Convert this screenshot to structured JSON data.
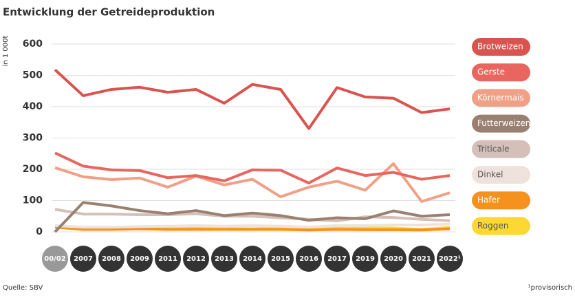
{
  "chart_data": {
    "type": "line",
    "title": "Entwicklung der Getreideproduktion",
    "y_label": "in 1 000t",
    "categories": [
      "00/02",
      "2007",
      "2008",
      "2009",
      "2011",
      "2012",
      "2013",
      "2014",
      "2015",
      "2016",
      "2017",
      "2019",
      "2020",
      "2021",
      "2022¹"
    ],
    "series": [
      {
        "name": "Brotweizen",
        "color": "#d9534f",
        "values": [
          518,
          435,
          455,
          462,
          446,
          455,
          411,
          471,
          455,
          330,
          461,
          431,
          427,
          381,
          393
        ]
      },
      {
        "name": "Gerste",
        "color": "#e8665f",
        "values": [
          252,
          210,
          198,
          196,
          173,
          180,
          163,
          198,
          197,
          156,
          204,
          180,
          190,
          168,
          180
        ]
      },
      {
        "name": "Körnermais",
        "color": "#f0a086",
        "values": [
          205,
          176,
          167,
          172,
          143,
          178,
          150,
          168,
          112,
          143,
          162,
          133,
          218,
          97,
          125
        ]
      },
      {
        "name": "Futterweizen",
        "color": "#9a8070",
        "values": [
          0,
          94,
          83,
          68,
          58,
          68,
          52,
          60,
          52,
          37,
          45,
          42,
          67,
          50,
          55
        ]
      },
      {
        "name": "Triticale",
        "color": "#d4c0b8",
        "values": [
          72,
          57,
          57,
          55,
          55,
          58,
          50,
          50,
          45,
          40,
          35,
          48,
          46,
          40,
          36
        ]
      },
      {
        "name": "Dinkel",
        "color": "#efe2dc",
        "values": [
          20,
          15,
          15,
          17,
          18,
          20,
          18,
          20,
          18,
          15,
          20,
          20,
          22,
          22,
          25
        ]
      },
      {
        "name": "Hafer",
        "color": "#f5921e",
        "values": [
          15,
          8,
          8,
          10,
          8,
          8,
          8,
          8,
          8,
          6,
          8,
          7,
          7,
          6,
          10
        ]
      },
      {
        "name": "Roggen",
        "color": "#fdd835",
        "values": [
          20,
          10,
          10,
          12,
          12,
          12,
          10,
          10,
          12,
          10,
          13,
          12,
          12,
          8,
          14
        ]
      }
    ],
    "ylim": [
      0,
      600
    ],
    "yticks": [
      0,
      100,
      200,
      300,
      400,
      500,
      600
    ],
    "grid": true,
    "source": "Quelle: SBV",
    "footnote": "¹provisorisch"
  }
}
